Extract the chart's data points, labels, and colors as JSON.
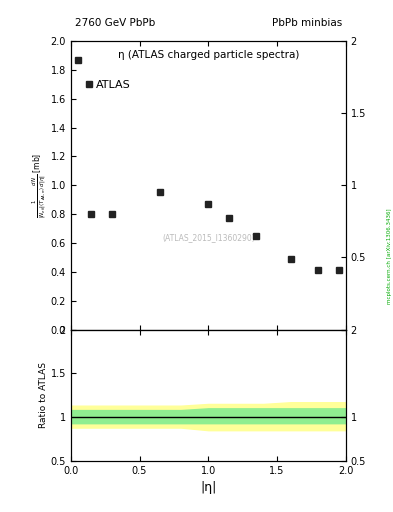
{
  "title_left": "2760 GeV PbPb",
  "title_right": "PbPb minbias",
  "panel_title": "η (ATLAS charged particle spectra)",
  "legend_label": "ATLAS",
  "watermark": "(ATLAS_2015_I1360290)",
  "side_label": "mcplots.cern.ch [arXiv:1306.3436]",
  "ylabel_ratio": "Ratio to ATLAS",
  "xlabel": "|η|",
  "xlim": [
    0,
    2
  ],
  "ylim_main": [
    0,
    2
  ],
  "ylim_ratio": [
    0.5,
    2
  ],
  "data_x": [
    0.05,
    0.15,
    0.3,
    0.65,
    1.0,
    1.15,
    1.35,
    1.6,
    1.8,
    1.95
  ],
  "data_y": [
    1.87,
    0.8,
    0.8,
    0.95,
    0.87,
    0.77,
    0.65,
    0.49,
    0.41,
    0.41
  ],
  "marker_color": "#222222",
  "marker_size": 5,
  "ratio_line_y": 1.0,
  "ratio_band_green_upper": [
    1.08,
    1.08,
    1.08,
    1.08,
    1.08,
    1.1,
    1.1,
    1.1,
    1.1,
    1.1
  ],
  "ratio_band_green_lower": [
    0.93,
    0.93,
    0.93,
    0.93,
    0.93,
    0.93,
    0.93,
    0.93,
    0.93,
    0.93
  ],
  "ratio_band_yellow_upper": [
    1.13,
    1.13,
    1.13,
    1.13,
    1.13,
    1.15,
    1.15,
    1.15,
    1.17,
    1.17
  ],
  "ratio_band_yellow_lower": [
    0.88,
    0.88,
    0.88,
    0.88,
    0.88,
    0.85,
    0.85,
    0.85,
    0.85,
    0.85
  ],
  "ratio_band_x": [
    0.0,
    0.2,
    0.4,
    0.6,
    0.8,
    1.0,
    1.2,
    1.4,
    1.6,
    2.0
  ],
  "green_color": "#90EE90",
  "yellow_color": "#FFFF99",
  "bg_color": "#ffffff",
  "watermark_color": "#bbbbbb"
}
